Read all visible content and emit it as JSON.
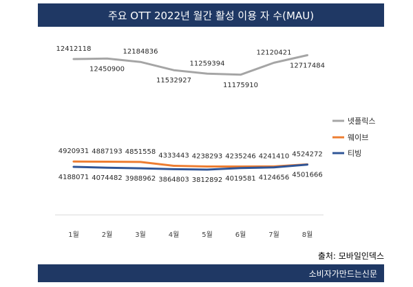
{
  "title": "주요 OTT 2022년 월간 활성 이용 자 수(MAU)",
  "source": "출처: 모바일인덱스",
  "publisher": "소비자가만드는신문",
  "colors": {
    "header": "#1f3864"
  },
  "chart_data": {
    "type": "line",
    "title": "주요 OTT 2022년 월간 활성 이용 자 수(MAU)",
    "categories": [
      "1월",
      "2월",
      "3월",
      "4월",
      "5월",
      "6월",
      "7월",
      "8월"
    ],
    "legend_position": "right",
    "grid": false,
    "series": [
      {
        "name": "넷플릭스",
        "color": "#a5a5a5",
        "values": [
          12412118,
          12450900,
          12184836,
          11532927,
          11259394,
          11175910,
          12120421,
          12717484
        ],
        "labels": [
          "12412118",
          "12450900",
          "12184836",
          "11532927",
          "11259394",
          "11175910",
          "12120421",
          "12717484"
        ]
      },
      {
        "name": "웨이브",
        "color": "#ed7d31",
        "values": [
          4920931,
          4887193,
          4851558,
          4333443,
          4238293,
          4235246,
          4241410,
          4524272
        ],
        "labels": [
          "4920931",
          "4887193",
          "4851558",
          "4333443",
          "4238293",
          "4235246",
          "4241410",
          "4524272"
        ]
      },
      {
        "name": "티빙",
        "color": "#2f5597",
        "values": [
          4188071,
          4074482,
          3988962,
          3864803,
          3812892,
          4019581,
          4124656,
          4501666
        ],
        "labels": [
          "4188071",
          "4074482",
          "3988962",
          "3864803",
          "3812892",
          "4019581",
          "4124656",
          "4501666"
        ]
      }
    ]
  }
}
